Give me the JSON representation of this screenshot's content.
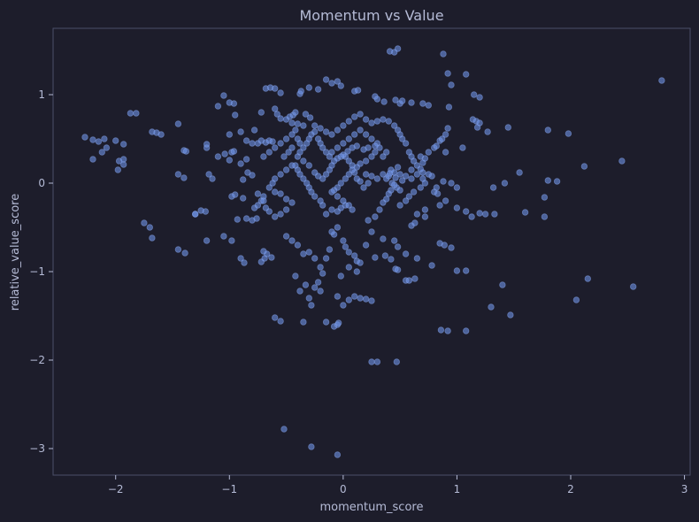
{
  "chart_data": {
    "type": "scatter",
    "title": "Momentum vs Value",
    "xlabel": "momentum_score",
    "ylabel": "relative_value_score",
    "xlim": [
      -2.55,
      3.05
    ],
    "ylim": [
      -3.3,
      1.75
    ],
    "xticks": [
      -2,
      -1,
      0,
      1,
      2,
      3
    ],
    "xtick_labels": [
      "−2",
      "−1",
      "0",
      "1",
      "2",
      "3"
    ],
    "yticks": [
      -3,
      -2,
      -1,
      0,
      1
    ],
    "ytick_labels": [
      "−3",
      "−2",
      "−1",
      "0",
      "1"
    ],
    "grid": false,
    "colors": {
      "background": "#1d1d2b",
      "point": "#6e92e6",
      "frame": "#4a4e69",
      "text": "#b5bbd6"
    },
    "points": [
      [
        -2.27,
        0.52
      ],
      [
        -2.2,
        0.49
      ],
      [
        -2.15,
        0.47
      ],
      [
        -2.1,
        0.5
      ],
      [
        -2.2,
        0.27
      ],
      [
        -2.12,
        0.35
      ],
      [
        -2.08,
        0.4
      ],
      [
        -2.0,
        0.48
      ],
      [
        -1.97,
        0.25
      ],
      [
        -1.93,
        0.27
      ],
      [
        -1.93,
        0.44
      ],
      [
        -1.87,
        0.79
      ],
      [
        -1.82,
        0.79
      ],
      [
        -1.98,
        0.15
      ],
      [
        -1.93,
        0.21
      ],
      [
        -1.68,
        0.58
      ],
      [
        -1.64,
        0.57
      ],
      [
        -1.6,
        0.55
      ],
      [
        -1.75,
        -0.45
      ],
      [
        -1.7,
        -0.5
      ],
      [
        -1.68,
        -0.62
      ],
      [
        -1.45,
        -0.75
      ],
      [
        -1.39,
        -0.79
      ],
      [
        -1.45,
        0.1
      ],
      [
        -1.4,
        0.06
      ],
      [
        -1.4,
        0.37
      ],
      [
        -1.38,
        0.36
      ],
      [
        -1.45,
        0.67
      ],
      [
        -1.3,
        -0.35
      ],
      [
        -1.25,
        -0.31
      ],
      [
        -1.21,
        -0.32
      ],
      [
        -1.2,
        -0.65
      ],
      [
        -1.18,
        0.1
      ],
      [
        -1.15,
        0.05
      ],
      [
        -1.1,
        0.3
      ],
      [
        -1.2,
        0.4
      ],
      [
        -1.2,
        0.44
      ],
      [
        -1.1,
        0.87
      ],
      [
        -1.05,
        0.99
      ],
      [
        -1.0,
        0.91
      ],
      [
        -0.96,
        0.9
      ],
      [
        -0.95,
        0.77
      ],
      [
        -1.0,
        0.55
      ],
      [
        -1.04,
        0.33
      ],
      [
        -0.98,
        0.35
      ],
      [
        -0.96,
        0.36
      ],
      [
        -0.9,
        0.22
      ],
      [
        -0.85,
        0.27
      ],
      [
        -0.88,
        0.04
      ],
      [
        -0.84,
        0.12
      ],
      [
        -0.8,
        0.09
      ],
      [
        -0.95,
        -0.13
      ],
      [
        -0.98,
        -0.15
      ],
      [
        -0.88,
        -0.17
      ],
      [
        -1.05,
        -0.6
      ],
      [
        -0.98,
        -0.65
      ],
      [
        -0.9,
        -0.85
      ],
      [
        -0.87,
        -0.9
      ],
      [
        -0.93,
        -0.41
      ],
      [
        -0.85,
        -0.4
      ],
      [
        -0.8,
        -0.42
      ],
      [
        -0.76,
        -0.4
      ],
      [
        -0.78,
        -0.28
      ],
      [
        -0.75,
        -0.25
      ],
      [
        -0.72,
        -0.2
      ],
      [
        -0.7,
        -0.15
      ],
      [
        -0.72,
        -0.89
      ],
      [
        -0.69,
        -0.85
      ],
      [
        -0.67,
        -0.8
      ],
      [
        -0.63,
        -0.84
      ],
      [
        -0.7,
        -0.77
      ],
      [
        -0.85,
        0.48
      ],
      [
        -0.8,
        0.45
      ],
      [
        -0.78,
        0.6
      ],
      [
        -0.75,
        0.45
      ],
      [
        -0.72,
        0.48
      ],
      [
        -0.68,
        0.46
      ],
      [
        -0.65,
        0.48
      ],
      [
        -0.62,
        0.47
      ],
      [
        -0.72,
        0.8
      ],
      [
        -0.68,
        1.07
      ],
      [
        -0.64,
        1.08
      ],
      [
        -0.6,
        1.07
      ],
      [
        -0.55,
        1.02
      ],
      [
        -0.6,
        0.84
      ],
      [
        -0.58,
        0.78
      ],
      [
        -0.55,
        0.73
      ],
      [
        -0.5,
        0.72
      ],
      [
        -0.47,
        0.75
      ],
      [
        -0.44,
        0.77
      ],
      [
        -0.42,
        0.8
      ],
      [
        -0.45,
        0.68
      ],
      [
        -0.4,
        0.67
      ],
      [
        -0.35,
        0.65
      ],
      [
        -0.33,
        0.78
      ],
      [
        -0.29,
        0.74
      ],
      [
        -0.38,
        1.01
      ],
      [
        -0.37,
        1.04
      ],
      [
        -0.3,
        1.08
      ],
      [
        -0.22,
        1.06
      ],
      [
        -0.15,
        1.17
      ],
      [
        -0.1,
        1.13
      ],
      [
        -0.05,
        1.15
      ],
      [
        -0.02,
        1.1
      ],
      [
        0.1,
        1.04
      ],
      [
        0.13,
        1.05
      ],
      [
        0.28,
        0.98
      ],
      [
        0.3,
        0.95
      ],
      [
        0.36,
        0.92
      ],
      [
        0.41,
        1.49
      ],
      [
        0.45,
        1.48
      ],
      [
        0.48,
        1.52
      ],
      [
        0.46,
        0.94
      ],
      [
        0.5,
        0.9
      ],
      [
        0.52,
        0.93
      ],
      [
        0.6,
        0.91
      ],
      [
        0.7,
        0.9
      ],
      [
        0.75,
        0.88
      ],
      [
        0.88,
        1.46
      ],
      [
        0.92,
        1.24
      ],
      [
        0.95,
        1.11
      ],
      [
        1.08,
        1.23
      ],
      [
        0.93,
        0.86
      ],
      [
        1.15,
        1.0
      ],
      [
        1.2,
        0.97
      ],
      [
        1.14,
        0.72
      ],
      [
        1.17,
        0.7
      ],
      [
        1.2,
        0.68
      ],
      [
        1.18,
        0.63
      ],
      [
        1.27,
        0.58
      ],
      [
        1.45,
        0.63
      ],
      [
        1.55,
        0.12
      ],
      [
        1.42,
        0.0
      ],
      [
        1.32,
        -0.05
      ],
      [
        1.25,
        -0.35
      ],
      [
        1.33,
        -0.35
      ],
      [
        1.6,
        -0.33
      ],
      [
        1.77,
        -0.38
      ],
      [
        1.77,
        -0.16
      ],
      [
        1.8,
        0.03
      ],
      [
        1.88,
        0.02
      ],
      [
        1.8,
        0.6
      ],
      [
        1.98,
        0.56
      ],
      [
        2.12,
        0.19
      ],
      [
        2.45,
        0.25
      ],
      [
        2.8,
        1.16
      ],
      [
        2.15,
        -1.08
      ],
      [
        2.05,
        -1.32
      ],
      [
        2.55,
        -1.17
      ],
      [
        1.47,
        -1.49
      ],
      [
        1.4,
        -1.15
      ],
      [
        1.3,
        -1.4
      ],
      [
        1.08,
        -1.67
      ],
      [
        0.92,
        -1.67
      ],
      [
        0.86,
        -1.66
      ],
      [
        1.0,
        -0.99
      ],
      [
        1.08,
        -0.99
      ],
      [
        0.95,
        -0.73
      ],
      [
        0.85,
        -0.68
      ],
      [
        0.89,
        -0.7
      ],
      [
        0.78,
        -0.93
      ],
      [
        0.65,
        -0.85
      ],
      [
        0.55,
        -1.1
      ],
      [
        0.58,
        -1.1
      ],
      [
        0.63,
        -1.08
      ],
      [
        0.46,
        -0.97
      ],
      [
        0.48,
        -0.98
      ],
      [
        0.55,
        -0.8
      ],
      [
        0.42,
        -0.86
      ],
      [
        0.37,
        -0.82
      ],
      [
        0.28,
        -0.84
      ],
      [
        0.35,
        -0.63
      ],
      [
        0.45,
        -0.65
      ],
      [
        0.48,
        -0.72
      ],
      [
        0.6,
        -0.48
      ],
      [
        0.63,
        -0.45
      ],
      [
        0.65,
        -0.35
      ],
      [
        0.72,
        -0.3
      ],
      [
        0.72,
        -0.38
      ],
      [
        0.85,
        -0.25
      ],
      [
        0.9,
        -0.2
      ],
      [
        1.0,
        -0.28
      ],
      [
        1.08,
        -0.32
      ],
      [
        1.13,
        -0.38
      ],
      [
        1.2,
        -0.34
      ],
      [
        1.0,
        -0.05
      ],
      [
        0.95,
        0.0
      ],
      [
        0.88,
        0.02
      ],
      [
        0.82,
        -0.05
      ],
      [
        0.8,
        -0.1
      ],
      [
        0.83,
        -0.12
      ],
      [
        0.78,
        0.08
      ],
      [
        0.75,
        0.1
      ],
      [
        0.7,
        0.12
      ],
      [
        0.65,
        0.2
      ],
      [
        0.62,
        0.25
      ],
      [
        0.6,
        0.3
      ],
      [
        0.58,
        0.35
      ],
      [
        0.68,
        0.3
      ],
      [
        0.7,
        0.23
      ],
      [
        0.72,
        0.28
      ],
      [
        0.75,
        0.35
      ],
      [
        0.8,
        0.4
      ],
      [
        0.85,
        0.48
      ],
      [
        0.9,
        0.55
      ],
      [
        0.92,
        0.62
      ],
      [
        0.87,
        0.5
      ],
      [
        0.82,
        0.42
      ],
      [
        0.6,
        0.05
      ],
      [
        0.55,
        0.08
      ],
      [
        0.5,
        0.1
      ],
      [
        0.45,
        0.12
      ],
      [
        0.42,
        0.15
      ],
      [
        0.4,
        0.08
      ],
      [
        0.38,
        0.05
      ],
      [
        0.43,
        0.0
      ],
      [
        0.47,
        -0.05
      ],
      [
        0.5,
        -0.08
      ],
      [
        0.52,
        0.03
      ],
      [
        0.48,
        0.18
      ],
      [
        0.46,
        0.06
      ],
      [
        0.41,
        0.11
      ],
      [
        0.35,
        0.1
      ],
      [
        0.3,
        0.05
      ],
      [
        0.25,
        0.08
      ],
      [
        0.22,
        0.0
      ],
      [
        0.2,
        0.1
      ],
      [
        0.18,
        -0.05
      ],
      [
        0.15,
        0.02
      ],
      [
        0.12,
        0.05
      ],
      [
        0.1,
        0.12
      ],
      [
        0.08,
        0.2
      ],
      [
        0.05,
        0.25
      ],
      [
        0.02,
        0.3
      ],
      [
        0.0,
        0.32
      ],
      [
        -0.02,
        0.3
      ],
      [
        -0.05,
        0.28
      ],
      [
        -0.08,
        0.25
      ],
      [
        -0.1,
        0.35
      ],
      [
        -0.05,
        0.4
      ],
      [
        0.0,
        0.45
      ],
      [
        0.05,
        0.5
      ],
      [
        0.1,
        0.55
      ],
      [
        0.15,
        0.6
      ],
      [
        0.2,
        0.55
      ],
      [
        0.25,
        0.5
      ],
      [
        0.3,
        0.45
      ],
      [
        0.28,
        0.35
      ],
      [
        0.25,
        0.3
      ],
      [
        0.2,
        0.25
      ],
      [
        0.15,
        0.22
      ],
      [
        0.12,
        0.18
      ],
      [
        0.08,
        0.15
      ],
      [
        0.05,
        0.1
      ],
      [
        0.02,
        0.05
      ],
      [
        -0.02,
        0.0
      ],
      [
        -0.05,
        -0.05
      ],
      [
        -0.08,
        -0.08
      ],
      [
        -0.1,
        -0.1
      ],
      [
        -0.05,
        -0.15
      ],
      [
        0.0,
        -0.2
      ],
      [
        0.02,
        -0.25
      ],
      [
        0.05,
        -0.25
      ],
      [
        0.08,
        -0.3
      ],
      [
        -0.02,
        -0.28
      ],
      [
        -0.05,
        -0.32
      ],
      [
        -0.1,
        -0.3
      ],
      [
        -0.15,
        -0.35
      ],
      [
        -0.18,
        -0.25
      ],
      [
        -0.2,
        -0.2
      ],
      [
        -0.25,
        -0.15
      ],
      [
        -0.28,
        -0.1
      ],
      [
        -0.3,
        -0.05
      ],
      [
        -0.32,
        0.0
      ],
      [
        -0.35,
        0.05
      ],
      [
        -0.38,
        0.1
      ],
      [
        -0.4,
        0.15
      ],
      [
        -0.42,
        0.2
      ],
      [
        -0.4,
        0.3
      ],
      [
        -0.38,
        0.35
      ],
      [
        -0.35,
        0.4
      ],
      [
        -0.32,
        0.45
      ],
      [
        -0.3,
        0.5
      ],
      [
        -0.28,
        0.55
      ],
      [
        -0.25,
        0.58
      ],
      [
        -0.22,
        0.5
      ],
      [
        -0.2,
        0.45
      ],
      [
        -0.18,
        0.4
      ],
      [
        -0.15,
        0.35
      ],
      [
        -0.12,
        0.3
      ],
      [
        -0.1,
        0.2
      ],
      [
        -0.12,
        0.15
      ],
      [
        -0.15,
        0.1
      ],
      [
        -0.18,
        0.05
      ],
      [
        -0.22,
        0.08
      ],
      [
        -0.25,
        0.12
      ],
      [
        -0.3,
        0.2
      ],
      [
        -0.35,
        0.25
      ],
      [
        -0.45,
        0.2
      ],
      [
        -0.5,
        0.15
      ],
      [
        -0.55,
        0.1
      ],
      [
        -0.6,
        0.05
      ],
      [
        -0.62,
        0.0
      ],
      [
        -0.65,
        -0.05
      ],
      [
        -0.6,
        -0.1
      ],
      [
        -0.55,
        -0.12
      ],
      [
        -0.5,
        -0.18
      ],
      [
        -0.45,
        -0.22
      ],
      [
        -0.5,
        -0.3
      ],
      [
        -0.55,
        -0.35
      ],
      [
        -0.6,
        -0.38
      ],
      [
        -0.65,
        -0.32
      ],
      [
        -0.68,
        -0.28
      ],
      [
        -0.7,
        -0.2
      ],
      [
        -0.75,
        -0.12
      ],
      [
        -0.7,
        0.3
      ],
      [
        -0.65,
        0.35
      ],
      [
        -0.6,
        0.4
      ],
      [
        -0.55,
        0.45
      ],
      [
        -0.5,
        0.5
      ],
      [
        -0.45,
        0.55
      ],
      [
        -0.42,
        0.6
      ],
      [
        -0.4,
        0.5
      ],
      [
        -0.38,
        0.45
      ],
      [
        -0.45,
        0.4
      ],
      [
        -0.48,
        0.35
      ],
      [
        -0.52,
        0.3
      ],
      [
        -0.5,
        -0.6
      ],
      [
        -0.45,
        -0.65
      ],
      [
        -0.4,
        -0.7
      ],
      [
        -0.35,
        -0.8
      ],
      [
        -0.3,
        -0.78
      ],
      [
        -0.25,
        -0.85
      ],
      [
        -0.42,
        -1.05
      ],
      [
        -0.38,
        -1.22
      ],
      [
        -0.33,
        -1.15
      ],
      [
        -0.3,
        -1.3
      ],
      [
        -0.28,
        -1.38
      ],
      [
        -0.25,
        -1.18
      ],
      [
        -0.22,
        -1.12
      ],
      [
        -0.2,
        -1.22
      ],
      [
        -0.18,
        -1.02
      ],
      [
        -0.15,
        -1.57
      ],
      [
        -0.35,
        -1.57
      ],
      [
        -0.6,
        -1.52
      ],
      [
        -0.55,
        -1.56
      ],
      [
        -0.08,
        -1.62
      ],
      [
        -0.05,
        -1.6
      ],
      [
        -0.04,
        -1.58
      ],
      [
        -0.02,
        -1.05
      ],
      [
        -0.05,
        -1.28
      ],
      [
        0.0,
        -1.38
      ],
      [
        0.05,
        -1.32
      ],
      [
        0.1,
        -1.28
      ],
      [
        0.15,
        -1.3
      ],
      [
        0.2,
        -1.31
      ],
      [
        0.25,
        -1.33
      ],
      [
        0.1,
        -0.82
      ],
      [
        0.12,
        -0.88
      ],
      [
        0.15,
        -0.9
      ],
      [
        0.05,
        -0.78
      ],
      [
        0.02,
        -0.72
      ],
      [
        0.0,
        -0.65
      ],
      [
        -0.05,
        -0.5
      ],
      [
        -0.08,
        -0.58
      ],
      [
        -0.1,
        -0.55
      ],
      [
        -0.12,
        -0.75
      ],
      [
        0.2,
        -0.7
      ],
      [
        0.25,
        -0.55
      ],
      [
        0.22,
        -0.42
      ],
      [
        0.28,
        -0.38
      ],
      [
        0.32,
        -0.3
      ],
      [
        0.35,
        -0.22
      ],
      [
        0.38,
        -0.18
      ],
      [
        0.4,
        -0.12
      ],
      [
        0.42,
        -0.08
      ],
      [
        0.45,
        -0.02
      ],
      [
        0.25,
        -2.02
      ],
      [
        0.3,
        -2.02
      ],
      [
        0.47,
        -2.02
      ],
      [
        -0.52,
        -2.78
      ],
      [
        -0.28,
        -2.98
      ],
      [
        -0.05,
        -3.07
      ],
      [
        0.55,
        0.45
      ],
      [
        0.52,
        0.5
      ],
      [
        0.5,
        0.55
      ],
      [
        0.48,
        0.6
      ],
      [
        0.45,
        0.65
      ],
      [
        0.4,
        0.7
      ],
      [
        0.35,
        0.72
      ],
      [
        0.3,
        0.7
      ],
      [
        0.25,
        0.68
      ],
      [
        0.2,
        0.72
      ],
      [
        0.15,
        0.78
      ],
      [
        0.1,
        0.75
      ],
      [
        0.05,
        0.7
      ],
      [
        0.0,
        0.65
      ],
      [
        -0.05,
        0.6
      ],
      [
        -0.1,
        0.55
      ],
      [
        -0.15,
        0.58
      ],
      [
        -0.2,
        0.62
      ],
      [
        -0.25,
        0.65
      ],
      [
        0.6,
        0.15
      ],
      [
        0.65,
        0.1
      ],
      [
        0.7,
        0.05
      ],
      [
        0.72,
        0.0
      ],
      [
        0.68,
        -0.05
      ],
      [
        0.62,
        -0.1
      ],
      [
        0.58,
        -0.15
      ],
      [
        0.55,
        -0.2
      ],
      [
        0.5,
        -0.25
      ],
      [
        0.35,
        0.3
      ],
      [
        0.38,
        0.35
      ],
      [
        0.32,
        0.4
      ],
      [
        0.28,
        0.42
      ],
      [
        0.22,
        0.4
      ],
      [
        0.18,
        0.38
      ],
      [
        0.12,
        0.42
      ],
      [
        0.08,
        0.4
      ],
      [
        0.04,
        0.36
      ],
      [
        -1.3,
        -0.35
      ],
      [
        -1.0,
        0.26
      ],
      [
        -0.9,
        0.58
      ],
      [
        0.9,
        0.35
      ],
      [
        1.05,
        0.4
      ],
      [
        0.68,
        0.16
      ],
      [
        -0.15,
        -0.85
      ],
      [
        -0.2,
        -0.95
      ],
      [
        0.05,
        -0.95
      ],
      [
        0.12,
        -1.0
      ]
    ]
  }
}
